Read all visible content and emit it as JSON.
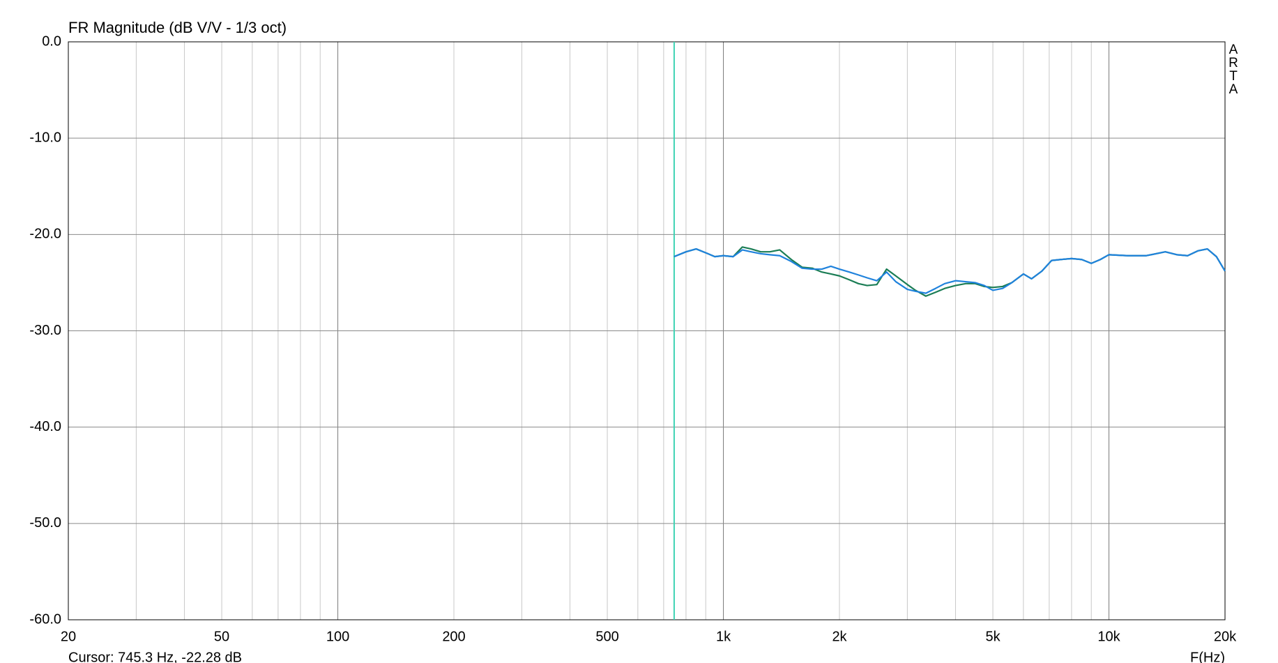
{
  "chart_data": {
    "type": "line",
    "title": "FR Magnitude (dB V/V - 1/3 oct)",
    "x_label": "F(Hz)",
    "watermark": "ARTA",
    "cursor": {
      "label": "Cursor: 745.3 Hz, -22.28 dB",
      "x": 745.3,
      "color": "#3fd3b4"
    },
    "x_scale": "log",
    "grid": true,
    "xlim": [
      20,
      20000
    ],
    "ylim": [
      -60,
      0
    ],
    "xticks": [
      20,
      50,
      100,
      200,
      500,
      {
        "value": 1000,
        "label": "1k"
      },
      {
        "value": 2000,
        "label": "2k"
      },
      {
        "value": 5000,
        "label": "5k"
      },
      {
        "value": 10000,
        "label": "10k"
      },
      {
        "value": 20000,
        "label": "20k"
      }
    ],
    "xminorticks": [
      30,
      40,
      60,
      70,
      80,
      90,
      300,
      400,
      600,
      700,
      800,
      900,
      3000,
      4000,
      6000,
      7000,
      8000,
      9000
    ],
    "yticks": [
      {
        "value": -60,
        "label": "-60.0"
      },
      {
        "value": -50,
        "label": "-50.0"
      },
      {
        "value": -40,
        "label": "-40.0"
      },
      {
        "value": -30,
        "label": "-30.0"
      },
      {
        "value": -20,
        "label": "-20.0"
      },
      {
        "value": -10,
        "label": "-10.0"
      },
      {
        "value": 0,
        "label": "0.0"
      }
    ],
    "x": [
      745,
      800,
      850,
      900,
      950,
      1000,
      1060,
      1120,
      1180,
      1250,
      1320,
      1400,
      1500,
      1600,
      1700,
      1800,
      1900,
      2000,
      2120,
      2240,
      2360,
      2500,
      2650,
      2800,
      3000,
      3150,
      3350,
      3550,
      3750,
      4000,
      4250,
      4500,
      4750,
      5000,
      5300,
      5600,
      6000,
      6300,
      6700,
      7100,
      7500,
      8000,
      8500,
      9000,
      9500,
      10000,
      11200,
      12500,
      14000,
      15000,
      16000,
      17000,
      18000,
      19000,
      20000
    ],
    "series": [
      {
        "color": "#1b7d55",
        "values": [
          -22.3,
          -21.8,
          -21.5,
          -21.9,
          -22.3,
          -22.2,
          -22.3,
          -21.3,
          -21.5,
          -21.8,
          -21.8,
          -21.6,
          -22.6,
          -23.4,
          -23.5,
          -23.9,
          -24.1,
          -24.3,
          -24.7,
          -25.1,
          -25.3,
          -25.2,
          -23.6,
          -24.3,
          -25.2,
          -25.8,
          -26.4,
          -26.0,
          -25.6,
          -25.3,
          -25.1,
          -25.1,
          -25.4,
          -25.5,
          -25.4,
          -25.0,
          -24.1,
          -24.6,
          -23.8,
          -22.7,
          -22.6,
          -22.5,
          -22.6,
          -23.0,
          -22.6,
          -22.1,
          -22.2,
          -22.2,
          -21.8,
          -22.1,
          -22.2,
          -21.7,
          -21.5,
          -22.3,
          -23.8
        ]
      },
      {
        "color": "#1f82dc",
        "values": [
          -22.3,
          -21.8,
          -21.5,
          -21.9,
          -22.3,
          -22.2,
          -22.3,
          -21.6,
          -21.8,
          -22.0,
          -22.1,
          -22.2,
          -22.8,
          -23.5,
          -23.6,
          -23.6,
          -23.3,
          -23.6,
          -23.9,
          -24.2,
          -24.5,
          -24.8,
          -23.9,
          -24.9,
          -25.7,
          -25.9,
          -26.1,
          -25.6,
          -25.1,
          -24.8,
          -24.9,
          -25.0,
          -25.3,
          -25.8,
          -25.6,
          -25.0,
          -24.1,
          -24.6,
          -23.8,
          -22.7,
          -22.6,
          -22.5,
          -22.6,
          -23.0,
          -22.6,
          -22.1,
          -22.2,
          -22.2,
          -21.8,
          -22.1,
          -22.2,
          -21.7,
          -21.5,
          -22.3,
          -23.8
        ]
      }
    ]
  }
}
